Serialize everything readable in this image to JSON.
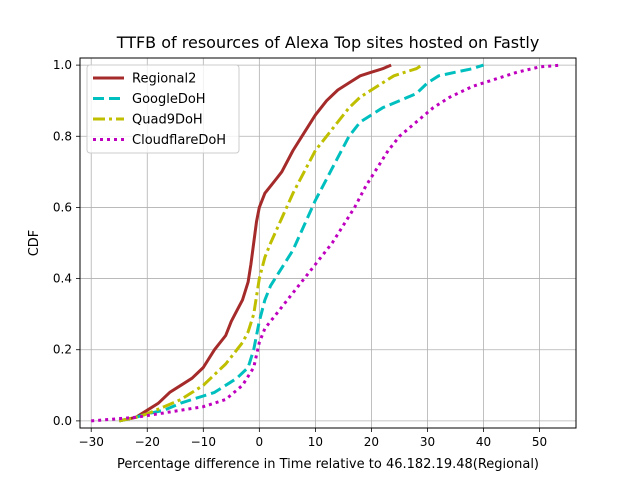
{
  "chart_data": {
    "type": "line",
    "title": "TTFB of resources of Alexa Top sites hosted on Fastly",
    "xlabel": "Percentage difference in Time relative to 46.182.19.48(Regional)",
    "ylabel": "CDF",
    "xlim": [
      -32,
      56.5
    ],
    "ylim": [
      -0.02,
      1.02
    ],
    "xticks": [
      -30,
      -20,
      -10,
      0,
      10,
      20,
      30,
      40,
      50
    ],
    "yticks": [
      0.0,
      0.2,
      0.4,
      0.6,
      0.8,
      1.0
    ],
    "xtick_labels": [
      "−30",
      "−20",
      "−10",
      "0",
      "10",
      "20",
      "30",
      "40",
      "50"
    ],
    "ytick_labels": [
      "0.0",
      "0.2",
      "0.4",
      "0.6",
      "0.8",
      "1.0"
    ],
    "grid": true,
    "legend_position": "upper-left",
    "series": [
      {
        "name": "Regional2",
        "color": "#a52a2a",
        "style": "solid",
        "x": [
          -25,
          -22,
          -20,
          -18,
          -16,
          -14,
          -12,
          -10,
          -8,
          -6,
          -5,
          -4,
          -3,
          -2,
          -1.5,
          -1,
          -0.5,
          0,
          0.5,
          1,
          2,
          3,
          4,
          6,
          8,
          10,
          12,
          14,
          16,
          18,
          20,
          22,
          23.5
        ],
        "y": [
          0.0,
          0.01,
          0.03,
          0.05,
          0.08,
          0.1,
          0.12,
          0.15,
          0.2,
          0.24,
          0.28,
          0.31,
          0.34,
          0.39,
          0.44,
          0.5,
          0.56,
          0.6,
          0.62,
          0.64,
          0.66,
          0.68,
          0.7,
          0.76,
          0.81,
          0.86,
          0.9,
          0.93,
          0.95,
          0.97,
          0.98,
          0.99,
          1.0
        ]
      },
      {
        "name": "GoogleDoH",
        "color": "#00bfbf",
        "style": "dashed",
        "x": [
          -25,
          -22,
          -20,
          -17,
          -14,
          -12,
          -10,
          -8,
          -6,
          -4,
          -2,
          -1,
          0,
          1,
          2,
          4,
          6,
          8,
          10,
          12,
          14,
          16,
          18,
          20,
          22,
          25,
          28,
          30,
          32,
          35,
          38,
          40
        ],
        "y": [
          0.0,
          0.01,
          0.02,
          0.03,
          0.05,
          0.06,
          0.07,
          0.08,
          0.1,
          0.12,
          0.15,
          0.2,
          0.28,
          0.34,
          0.38,
          0.43,
          0.48,
          0.55,
          0.62,
          0.68,
          0.74,
          0.8,
          0.84,
          0.86,
          0.88,
          0.9,
          0.92,
          0.95,
          0.97,
          0.98,
          0.99,
          1.0
        ]
      },
      {
        "name": "Quad9DoH",
        "color": "#bfbf00",
        "style": "dashdot",
        "x": [
          -25,
          -22,
          -20,
          -17,
          -14,
          -12,
          -10,
          -8,
          -6,
          -4,
          -3,
          -2,
          -1,
          -0.5,
          0,
          1,
          2,
          4,
          6,
          8,
          10,
          12,
          14,
          16,
          18,
          20,
          22,
          24,
          26,
          28,
          29
        ],
        "y": [
          0.0,
          0.01,
          0.02,
          0.04,
          0.06,
          0.08,
          0.1,
          0.13,
          0.16,
          0.2,
          0.22,
          0.25,
          0.3,
          0.35,
          0.4,
          0.46,
          0.5,
          0.57,
          0.64,
          0.7,
          0.76,
          0.8,
          0.84,
          0.88,
          0.91,
          0.93,
          0.95,
          0.97,
          0.98,
          0.99,
          1.0
        ]
      },
      {
        "name": "CloudflareDoH",
        "color": "#bf00bf",
        "style": "dotted",
        "x": [
          -30,
          -26,
          -22,
          -18,
          -14,
          -10,
          -6,
          -3,
          -1,
          0,
          1,
          3,
          5,
          7,
          9,
          11,
          13,
          15,
          17,
          19,
          21,
          23,
          25,
          28,
          31,
          34,
          38,
          42,
          46,
          50,
          54
        ],
        "y": [
          0.0,
          0.005,
          0.01,
          0.02,
          0.03,
          0.04,
          0.06,
          0.1,
          0.15,
          0.22,
          0.26,
          0.3,
          0.34,
          0.38,
          0.42,
          0.46,
          0.5,
          0.55,
          0.6,
          0.66,
          0.71,
          0.76,
          0.8,
          0.84,
          0.88,
          0.91,
          0.94,
          0.96,
          0.98,
          0.995,
          1.0
        ]
      }
    ]
  }
}
